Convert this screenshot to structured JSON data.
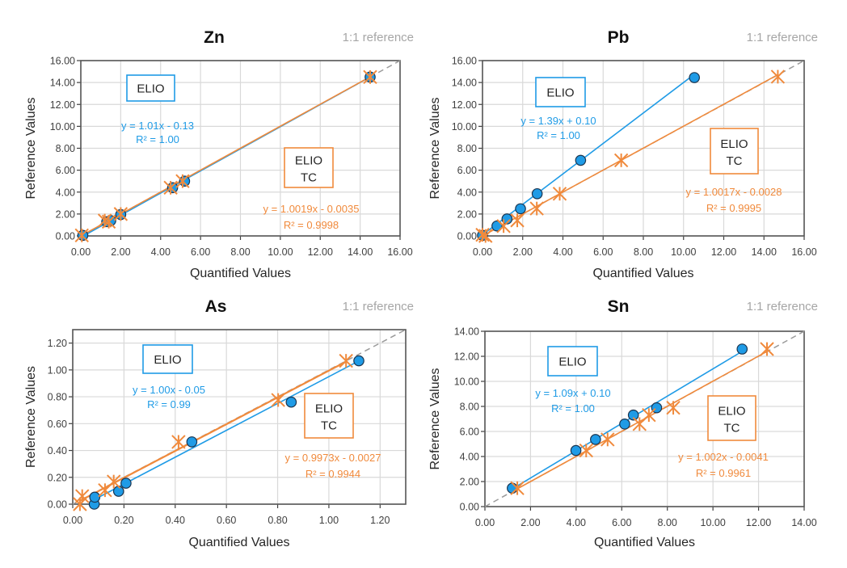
{
  "colors": {
    "elio": "#1f9be6",
    "elio_tc": "#f08a3c",
    "reference": "#9a9a9a",
    "grid": "#d9d9d9",
    "marker_edge": "#1b3550"
  },
  "chart_data": [
    {
      "type": "scatter",
      "title": "Zn",
      "reference_label": "1:1 reference",
      "xlabel": "Quantified Values",
      "ylabel": "Reference Values",
      "xlim": [
        0,
        16
      ],
      "ylim": [
        0,
        16
      ],
      "grid": true,
      "xticks": [
        "0.00",
        "2.00",
        "4.00",
        "6.00",
        "8.00",
        "10.00",
        "12.00",
        "14.00",
        "16.00"
      ],
      "yticks": [
        "0.00",
        "2.00",
        "4.00",
        "6.00",
        "8.00",
        "10.00",
        "12.00",
        "14.00",
        "16.00"
      ],
      "series": [
        {
          "name": "ELIO",
          "marker": "circle",
          "color": "#1f9be6",
          "trend": {
            "slope": 1.01,
            "intercept": -0.13,
            "equation": "y = 1.01x - 0.13",
            "r2": "R² = 1.00"
          },
          "points": [
            [
              0.1,
              0.05
            ],
            [
              1.3,
              1.3
            ],
            [
              1.5,
              1.4
            ],
            [
              2.0,
              1.95
            ],
            [
              4.6,
              4.4
            ],
            [
              5.2,
              5.0
            ],
            [
              14.5,
              14.5
            ]
          ]
        },
        {
          "name": "ELIO TC",
          "name_lines": [
            "ELIO",
            "TC"
          ],
          "marker": "star",
          "color": "#f08a3c",
          "trend": {
            "slope": 1.0019,
            "intercept": -0.0035,
            "equation": "y = 1.0019x - 0.0035",
            "r2": "R² = 0.9998"
          },
          "points": [
            [
              0.05,
              0.05
            ],
            [
              1.2,
              1.4
            ],
            [
              1.4,
              1.3
            ],
            [
              2.0,
              2.0
            ],
            [
              4.5,
              4.4
            ],
            [
              5.1,
              5.0
            ],
            [
              14.5,
              14.5
            ]
          ]
        }
      ]
    },
    {
      "type": "scatter",
      "title": "Pb",
      "reference_label": "1:1 reference",
      "xlabel": "Quantified Values",
      "ylabel": "Reference Values",
      "xlim": [
        0,
        16
      ],
      "ylim": [
        0,
        16
      ],
      "grid": true,
      "xticks": [
        "0.00",
        "2.00",
        "4.00",
        "6.00",
        "8.00",
        "10.00",
        "12.00",
        "14.00",
        "16.00"
      ],
      "yticks": [
        "0.00",
        "2.00",
        "4.00",
        "6.00",
        "8.00",
        "10.00",
        "12.00",
        "14.00",
        "16.00"
      ],
      "series": [
        {
          "name": "ELIO",
          "marker": "circle",
          "color": "#1f9be6",
          "trend": {
            "slope": 1.39,
            "intercept": 0.1,
            "equation": "y = 1.39x + 0.10",
            "r2": "R² = 1.00"
          },
          "points": [
            [
              0.0,
              0.05
            ],
            [
              0.72,
              0.91
            ],
            [
              1.22,
              1.55
            ],
            [
              1.89,
              2.48
            ],
            [
              2.72,
              3.85
            ],
            [
              4.88,
              6.9
            ],
            [
              10.54,
              14.45
            ]
          ]
        },
        {
          "name": "ELIO TC",
          "name_lines": [
            "ELIO",
            "TC"
          ],
          "marker": "star",
          "color": "#f08a3c",
          "trend": {
            "slope": 1.0017,
            "intercept": -0.0028,
            "equation": "y = 1.0017x - 0.0028",
            "r2": "R² = 0.9995"
          },
          "points": [
            [
              0.0,
              0.1
            ],
            [
              0.15,
              0.0
            ],
            [
              1.05,
              0.9
            ],
            [
              1.73,
              1.42
            ],
            [
              2.7,
              2.5
            ],
            [
              3.84,
              3.85
            ],
            [
              6.9,
              6.9
            ],
            [
              14.69,
              14.53
            ]
          ]
        }
      ]
    },
    {
      "type": "scatter",
      "title": "As",
      "reference_label": "1:1 reference",
      "xlabel": "Quantified Values",
      "ylabel": "Reference Values",
      "xlim": [
        0,
        1.3
      ],
      "ylim": [
        0,
        1.3
      ],
      "grid": true,
      "xticks": [
        "0.00",
        "0.20",
        "0.40",
        "0.60",
        "0.80",
        "1.00",
        "1.20"
      ],
      "yticks": [
        "0.00",
        "0.20",
        "0.40",
        "0.60",
        "0.80",
        "1.00",
        "1.20"
      ],
      "series": [
        {
          "name": "ELIO",
          "marker": "circle",
          "color": "#1f9be6",
          "trend": {
            "slope": 1.0,
            "intercept": -0.05,
            "equation": "y = 1.00x - 0.05",
            "r2": "R² = 0.99"
          },
          "points": [
            [
              0.084,
              0.0
            ],
            [
              0.086,
              0.052
            ],
            [
              0.179,
              0.096
            ],
            [
              0.208,
              0.156
            ],
            [
              0.465,
              0.464
            ],
            [
              0.853,
              0.76
            ],
            [
              1.117,
              1.068
            ]
          ]
        },
        {
          "name": "ELIO TC",
          "name_lines": [
            "ELIO",
            "TC"
          ],
          "marker": "star",
          "color": "#f08a3c",
          "trend": {
            "slope": 0.9973,
            "intercept": -0.0027,
            "equation": "y = 0.9973x - 0.0027",
            "r2": "R² = 0.9944"
          },
          "points": [
            [
              0.028,
              0.0
            ],
            [
              0.037,
              0.06
            ],
            [
              0.126,
              0.104
            ],
            [
              0.16,
              0.168
            ],
            [
              0.413,
              0.464
            ],
            [
              0.802,
              0.776
            ],
            [
              1.067,
              1.068
            ]
          ]
        }
      ]
    },
    {
      "type": "scatter",
      "title": "Sn",
      "reference_label": "1:1 reference",
      "xlabel": "Quantified Values",
      "ylabel": "Reference Values",
      "xlim": [
        0,
        14
      ],
      "ylim": [
        0,
        14
      ],
      "grid": true,
      "xticks": [
        "0.00",
        "2.00",
        "4.00",
        "6.00",
        "8.00",
        "10.00",
        "12.00",
        "14.00"
      ],
      "yticks": [
        "0.00",
        "2.00",
        "4.00",
        "6.00",
        "8.00",
        "10.00",
        "12.00",
        "14.00"
      ],
      "series": [
        {
          "name": "ELIO",
          "marker": "circle",
          "color": "#1f9be6",
          "trend": {
            "slope": 1.09,
            "intercept": 0.1,
            "equation": "y = 1.09x + 0.10",
            "r2": "R² = 1.00"
          },
          "points": [
            [
              1.2,
              1.47
            ],
            [
              3.99,
              4.48
            ],
            [
              4.85,
              5.36
            ],
            [
              6.13,
              6.59
            ],
            [
              6.51,
              7.31
            ],
            [
              7.53,
              7.89
            ],
            [
              11.28,
              12.58
            ]
          ]
        },
        {
          "name": "ELIO TC",
          "name_lines": [
            "ELIO",
            "TC"
          ],
          "marker": "star",
          "color": "#f08a3c",
          "trend": {
            "slope": 1.002,
            "intercept": -0.0041,
            "equation": "y = 1.002x - 0.0041",
            "r2": "R² = 0.9961"
          },
          "points": [
            [
              1.42,
              1.47
            ],
            [
              4.44,
              4.48
            ],
            [
              5.38,
              5.36
            ],
            [
              6.78,
              6.59
            ],
            [
              7.19,
              7.31
            ],
            [
              8.26,
              7.89
            ],
            [
              12.37,
              12.58
            ]
          ]
        }
      ]
    }
  ]
}
